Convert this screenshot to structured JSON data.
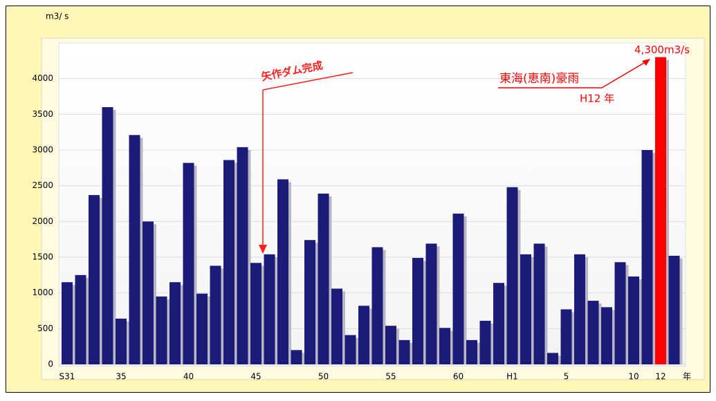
{
  "chart_data": {
    "type": "bar",
    "y_unit": "m3/ s",
    "x_unit": "年",
    "categories": [
      "S31",
      null,
      null,
      null,
      "35",
      null,
      null,
      null,
      null,
      "40",
      null,
      null,
      null,
      null,
      "45",
      null,
      null,
      null,
      null,
      "50",
      null,
      null,
      null,
      null,
      "55",
      null,
      null,
      null,
      null,
      "60",
      null,
      null,
      null,
      "H1",
      null,
      null,
      null,
      "5",
      null,
      null,
      null,
      null,
      "10",
      null,
      "12",
      null
    ],
    "values": [
      1150,
      1250,
      2370,
      3600,
      640,
      3210,
      2000,
      950,
      1150,
      2820,
      990,
      1380,
      2860,
      3040,
      1420,
      1540,
      2590,
      200,
      1740,
      2390,
      1060,
      410,
      820,
      1640,
      540,
      340,
      1490,
      1690,
      510,
      2110,
      340,
      610,
      1140,
      2480,
      1540,
      1690,
      160,
      770,
      1540,
      890,
      800,
      1430,
      1230,
      3000,
      4300,
      1520
    ],
    "value_labels": [
      null,
      null,
      null,
      null,
      null,
      null,
      null,
      null,
      null,
      null,
      null,
      null,
      null,
      null,
      null,
      null,
      null,
      null,
      null,
      null,
      null,
      null,
      null,
      null,
      null,
      null,
      null,
      null,
      null,
      null,
      null,
      null,
      null,
      null,
      null,
      null,
      null,
      null,
      null,
      null,
      null,
      null,
      null,
      null,
      "4,300m3/s",
      null
    ],
    "colors": [
      "#1c1c78",
      "#1c1c78",
      "#1c1c78",
      "#1c1c78",
      "#1c1c78",
      "#1c1c78",
      "#1c1c78",
      "#1c1c78",
      "#1c1c78",
      "#1c1c78",
      "#1c1c78",
      "#1c1c78",
      "#1c1c78",
      "#1c1c78",
      "#1c1c78",
      "#1c1c78",
      "#1c1c78",
      "#1c1c78",
      "#1c1c78",
      "#1c1c78",
      "#1c1c78",
      "#1c1c78",
      "#1c1c78",
      "#1c1c78",
      "#1c1c78",
      "#1c1c78",
      "#1c1c78",
      "#1c1c78",
      "#1c1c78",
      "#1c1c78",
      "#1c1c78",
      "#1c1c78",
      "#1c1c78",
      "#1c1c78",
      "#1c1c78",
      "#1c1c78",
      "#1c1c78",
      "#1c1c78",
      "#1c1c78",
      "#1c1c78",
      "#1c1c78",
      "#1c1c78",
      "#1c1c78",
      "#1c1c78",
      "#ff0000",
      "#1c1c78"
    ],
    "annotations": [
      "矢作ダム完成",
      "東海(恵南)豪雨",
      "H12 年"
    ],
    "ylim": [
      0,
      4500
    ],
    "yticks": [
      0,
      500,
      1000,
      1500,
      2000,
      2500,
      3000,
      3500,
      4000
    ],
    "grid": true
  }
}
